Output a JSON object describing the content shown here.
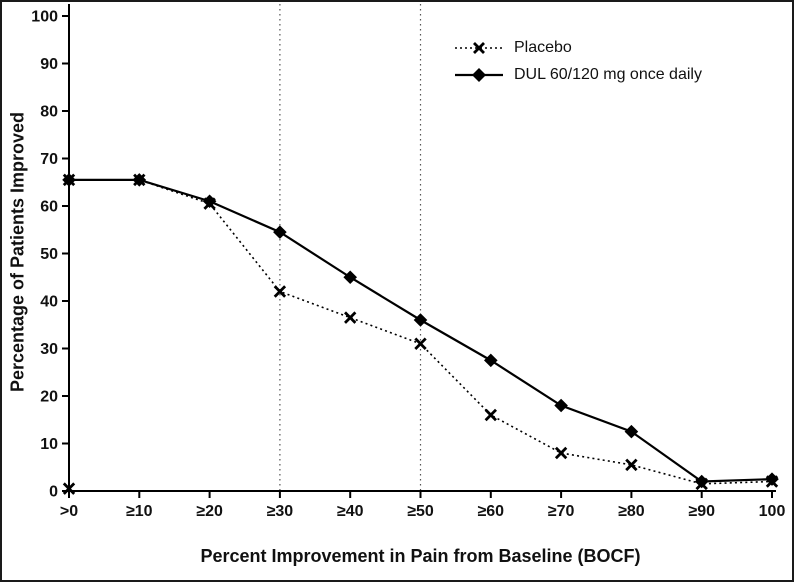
{
  "chart_data": {
    "type": "line",
    "title": "",
    "xlabel": "Percent Improvement in Pain from Baseline (BOCF)",
    "ylabel": "Percentage of Patients Improved",
    "categories": [
      ">0",
      "≥10",
      "≥20",
      "≥30",
      "≥40",
      "≥50",
      "≥60",
      "≥70",
      "≥80",
      "≥90",
      "100"
    ],
    "series": [
      {
        "name": "Placebo",
        "marker": "x",
        "line": "dotted",
        "color": "#000000",
        "values": [
          65.5,
          65.5,
          60.5,
          42,
          36.5,
          31,
          16,
          8,
          5.5,
          1.5,
          2
        ]
      },
      {
        "name": "DUL 60/120 mg once daily",
        "marker": "diamond",
        "line": "solid",
        "color": "#000000",
        "values": [
          65.5,
          65.5,
          61,
          54.5,
          45,
          36,
          27.5,
          18,
          12.5,
          2,
          2.5
        ]
      }
    ],
    "ylim": [
      0,
      100
    ],
    "ytick_step": 10,
    "yticks": [
      0,
      10,
      20,
      30,
      40,
      50,
      60,
      70,
      80,
      90,
      100
    ],
    "reference_lines": [
      "≥30",
      "≥50"
    ],
    "extra_markers": [
      {
        "marker": "x",
        "category": ">0",
        "value": 0.5
      }
    ],
    "legend_position": "top-right",
    "grid": false,
    "background": "#ffffff",
    "axis_color": "#000000"
  }
}
